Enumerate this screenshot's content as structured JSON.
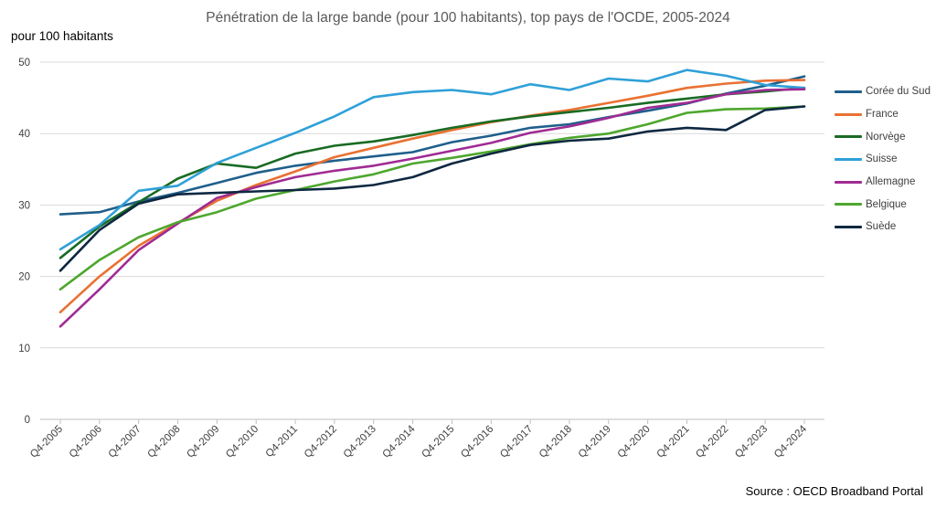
{
  "chart_data": {
    "type": "line",
    "title": "Pénétration de la large bande (pour 100 habitants), top pays de l'OCDE, 2005-2024",
    "ylabel": "pour 100 habitants",
    "xlabel": "",
    "source": "Source : OECD Broadband Portal",
    "ylim": [
      0,
      50
    ],
    "yticks": [
      0,
      10,
      20,
      30,
      40,
      50
    ],
    "grid": true,
    "legend_position": "right",
    "categories": [
      "Q4-2005",
      "Q4-2006",
      "Q4-2007",
      "Q4-2008",
      "Q4-2009",
      "Q4-2010",
      "Q4-2011",
      "Q4-2012",
      "Q4-2013",
      "Q4-2014",
      "Q4-2015",
      "Q4-2016",
      "Q4-2017",
      "Q4-2018",
      "Q4-2019",
      "Q4-2020",
      "Q4-2021",
      "Q4-2022",
      "Q4-2023",
      "Q4-2024"
    ],
    "series": [
      {
        "name": "Corée du Sud",
        "color": "#1f5f8b",
        "values": [
          28.7,
          29.0,
          30.5,
          31.7,
          33.1,
          34.5,
          35.5,
          36.2,
          36.8,
          37.4,
          38.8,
          39.7,
          40.8,
          41.3,
          42.3,
          43.2,
          44.2,
          45.6,
          46.7,
          48.0
        ]
      },
      {
        "name": "France",
        "color": "#e97132",
        "values": [
          15.0,
          20.0,
          24.3,
          27.5,
          30.6,
          32.8,
          34.7,
          36.7,
          38.0,
          39.3,
          40.5,
          41.6,
          42.5,
          43.3,
          44.3,
          45.3,
          46.4,
          47.0,
          47.4,
          47.5
        ]
      },
      {
        "name": "Norvège",
        "color": "#196b24",
        "values": [
          22.6,
          27.0,
          30.4,
          33.7,
          35.8,
          35.2,
          37.2,
          38.3,
          38.9,
          39.8,
          40.8,
          41.7,
          42.4,
          43.0,
          43.6,
          44.3,
          44.9,
          45.5,
          45.9,
          46.4
        ]
      },
      {
        "name": "Suisse",
        "color": "#2fa0d8",
        "values": [
          23.8,
          27.2,
          32.0,
          32.7,
          35.9,
          38.0,
          40.1,
          42.4,
          45.1,
          45.8,
          46.1,
          45.5,
          46.9,
          46.1,
          47.7,
          47.3,
          48.9,
          48.1,
          46.8,
          46.4
        ]
      },
      {
        "name": "Allemagne",
        "color": "#a02b93",
        "values": [
          13.0,
          18.2,
          23.7,
          27.4,
          31.0,
          32.5,
          33.9,
          34.8,
          35.5,
          36.5,
          37.6,
          38.7,
          40.1,
          41.0,
          42.2,
          43.6,
          44.3,
          45.5,
          46.1,
          46.2
        ]
      },
      {
        "name": "Belgique",
        "color": "#4ea72e",
        "values": [
          18.2,
          22.3,
          25.5,
          27.6,
          29.0,
          30.9,
          32.1,
          33.3,
          34.3,
          35.8,
          36.6,
          37.5,
          38.5,
          39.4,
          40.0,
          41.3,
          42.9,
          43.4,
          43.5,
          43.8
        ]
      },
      {
        "name": "Suède",
        "color": "#0e2841",
        "values": [
          20.8,
          26.5,
          30.2,
          31.5,
          31.7,
          31.9,
          32.1,
          32.3,
          32.8,
          33.9,
          35.8,
          37.2,
          38.4,
          39.0,
          39.3,
          40.3,
          40.8,
          40.5,
          43.3,
          43.8
        ]
      }
    ]
  }
}
